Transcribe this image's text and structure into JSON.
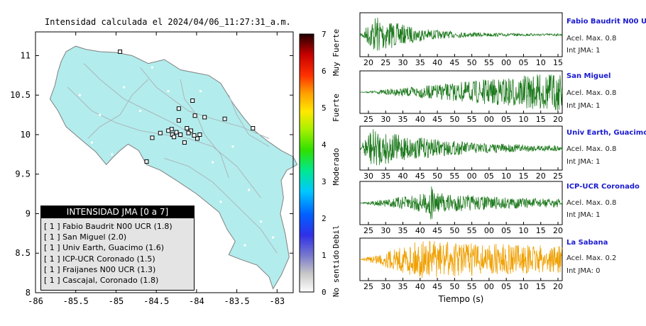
{
  "chart_data": [
    {
      "type": "map",
      "title": "Intensidad calculada el 2024/04/06_11:27:31_a.m.",
      "x_ticks": [
        "-86",
        "-85.5",
        "-85",
        "-84.5",
        "-84",
        "-83.5",
        "-83"
      ],
      "y_ticks": [
        "11",
        "10.5",
        "10",
        "9.5",
        "9",
        "8.5",
        "8"
      ],
      "xlim": [
        -86,
        -82.8
      ],
      "ylim": [
        8,
        11.3
      ],
      "land_color": "#b3ecec",
      "stations": [
        {
          "lon": -84.07,
          "lat": 10.05,
          "intensity": 1
        },
        {
          "lon": -83.99,
          "lat": 9.95,
          "intensity": 1
        },
        {
          "lon": -84.31,
          "lat": 10.07,
          "intensity": 1
        },
        {
          "lon": -84.12,
          "lat": 10.08,
          "intensity": 1
        },
        {
          "lon": -84.25,
          "lat": 10.03,
          "intensity": 1
        },
        {
          "lon": -84.2,
          "lat": 10.0,
          "intensity": 1
        },
        {
          "lon": -84.1,
          "lat": 10.02,
          "intensity": 1
        },
        {
          "lon": -84.03,
          "lat": 9.99,
          "intensity": 1
        },
        {
          "lon": -84.15,
          "lat": 9.9,
          "intensity": 1
        },
        {
          "lon": -83.96,
          "lat": 10.0,
          "intensity": 1
        },
        {
          "lon": -84.45,
          "lat": 10.02,
          "intensity": 1
        },
        {
          "lon": -84.3,
          "lat": 10.0,
          "intensity": 1
        },
        {
          "lon": -84.22,
          "lat": 10.18,
          "intensity": 1
        },
        {
          "lon": -84.02,
          "lat": 10.24,
          "intensity": 1
        },
        {
          "lon": -83.9,
          "lat": 10.22,
          "intensity": 1
        },
        {
          "lon": -84.05,
          "lat": 10.43,
          "intensity": 1
        },
        {
          "lon": -84.22,
          "lat": 10.33,
          "intensity": 1
        },
        {
          "lon": -84.35,
          "lat": 10.05,
          "intensity": 1
        },
        {
          "lon": -84.55,
          "lat": 9.96,
          "intensity": 1
        },
        {
          "lon": -84.62,
          "lat": 9.66,
          "intensity": 1
        },
        {
          "lon": -83.3,
          "lat": 10.08,
          "intensity": 1
        },
        {
          "lon": -83.65,
          "lat": 10.2,
          "intensity": 1
        },
        {
          "lon": -84.95,
          "lat": 11.05,
          "intensity": 1
        },
        {
          "lon": -84.28,
          "lat": 9.97,
          "intensity": 1
        }
      ],
      "legend": {
        "title": "INTENSIDAD JMA [0 a 7]",
        "rows": [
          "[ 1 ]  Fabio Baudrit N00 UCR (1.8)",
          "[ 1 ]  San Miguel (2.0)",
          "[ 1 ]  Univ Earth, Guacimo (1.6)",
          "[ 1 ]  ICP-UCR Coronado (1.5)",
          "[ 1 ]  Fraijanes N00 UCR (1.3)",
          "[ 1 ]  Cascajal, Coronado (1.8)"
        ]
      }
    },
    {
      "type": "colorbar",
      "ticks": [
        "0",
        "1",
        "2",
        "3",
        "4",
        "5",
        "6",
        "7"
      ],
      "labels": [
        "No sentido",
        "Debil",
        "Moderado",
        "Fuerte",
        "Muy Fuerte"
      ],
      "range": [
        0,
        7
      ]
    },
    {
      "type": "line",
      "xlabel": "Tiempo (s)",
      "series": [
        {
          "name": "Fabio Baudrit N00 UCR",
          "accel_label": "Acel. Max. 0.8",
          "jma_label": "Int JMA: 1",
          "color": "#1e7a1e",
          "ticks": [
            "20",
            "25",
            "30",
            "35",
            "40",
            "45",
            "50",
            "55",
            "00",
            "05",
            "10",
            "15"
          ],
          "onset": 0.02,
          "peak": 0.08,
          "decay": 0.18,
          "tail": 0.05
        },
        {
          "name": "San Miguel",
          "accel_label": "Acel. Max. 0.8",
          "jma_label": "Int JMA: 1",
          "color": "#1e7a1e",
          "ticks": [
            "25",
            "30",
            "35",
            "40",
            "45",
            "50",
            "55",
            "00",
            "05",
            "10",
            "15",
            "20"
          ],
          "onset": 0.0,
          "peak": 0.95,
          "decay": 0.6,
          "tail": 0.4
        },
        {
          "name": "Univ Earth, Guacimo",
          "accel_label": "Acel. Max. 0.8",
          "jma_label": "Int JMA: 1",
          "color": "#1e7a1e",
          "ticks": [
            "30",
            "35",
            "40",
            "45",
            "50",
            "55",
            "00",
            "05",
            "10",
            "15",
            "20",
            "25"
          ],
          "onset": 0.0,
          "peak": 0.05,
          "decay": 0.35,
          "tail": 0.08
        },
        {
          "name": "ICP-UCR Coronado",
          "accel_label": "Acel. Max. 0.8",
          "jma_label": "Int JMA: 1",
          "color": "#1e7a1e",
          "ticks": [
            "25",
            "30",
            "35",
            "40",
            "45",
            "50",
            "55",
            "00",
            "05",
            "10",
            "15",
            "20"
          ],
          "onset": 0.0,
          "peak": 0.35,
          "decay": 0.5,
          "tail": 0.15
        },
        {
          "name": "La Sabana",
          "accel_label": "Acel. Max. 0.2",
          "jma_label": "Int JMA: 0",
          "color": "#f0a000",
          "ticks": [
            "25",
            "30",
            "35",
            "40",
            "45",
            "50",
            "55",
            "00",
            "05",
            "10",
            "15",
            "20"
          ],
          "onset": 0.0,
          "peak": 0.3,
          "decay": 0.9,
          "tail": 0.45
        }
      ]
    }
  ]
}
